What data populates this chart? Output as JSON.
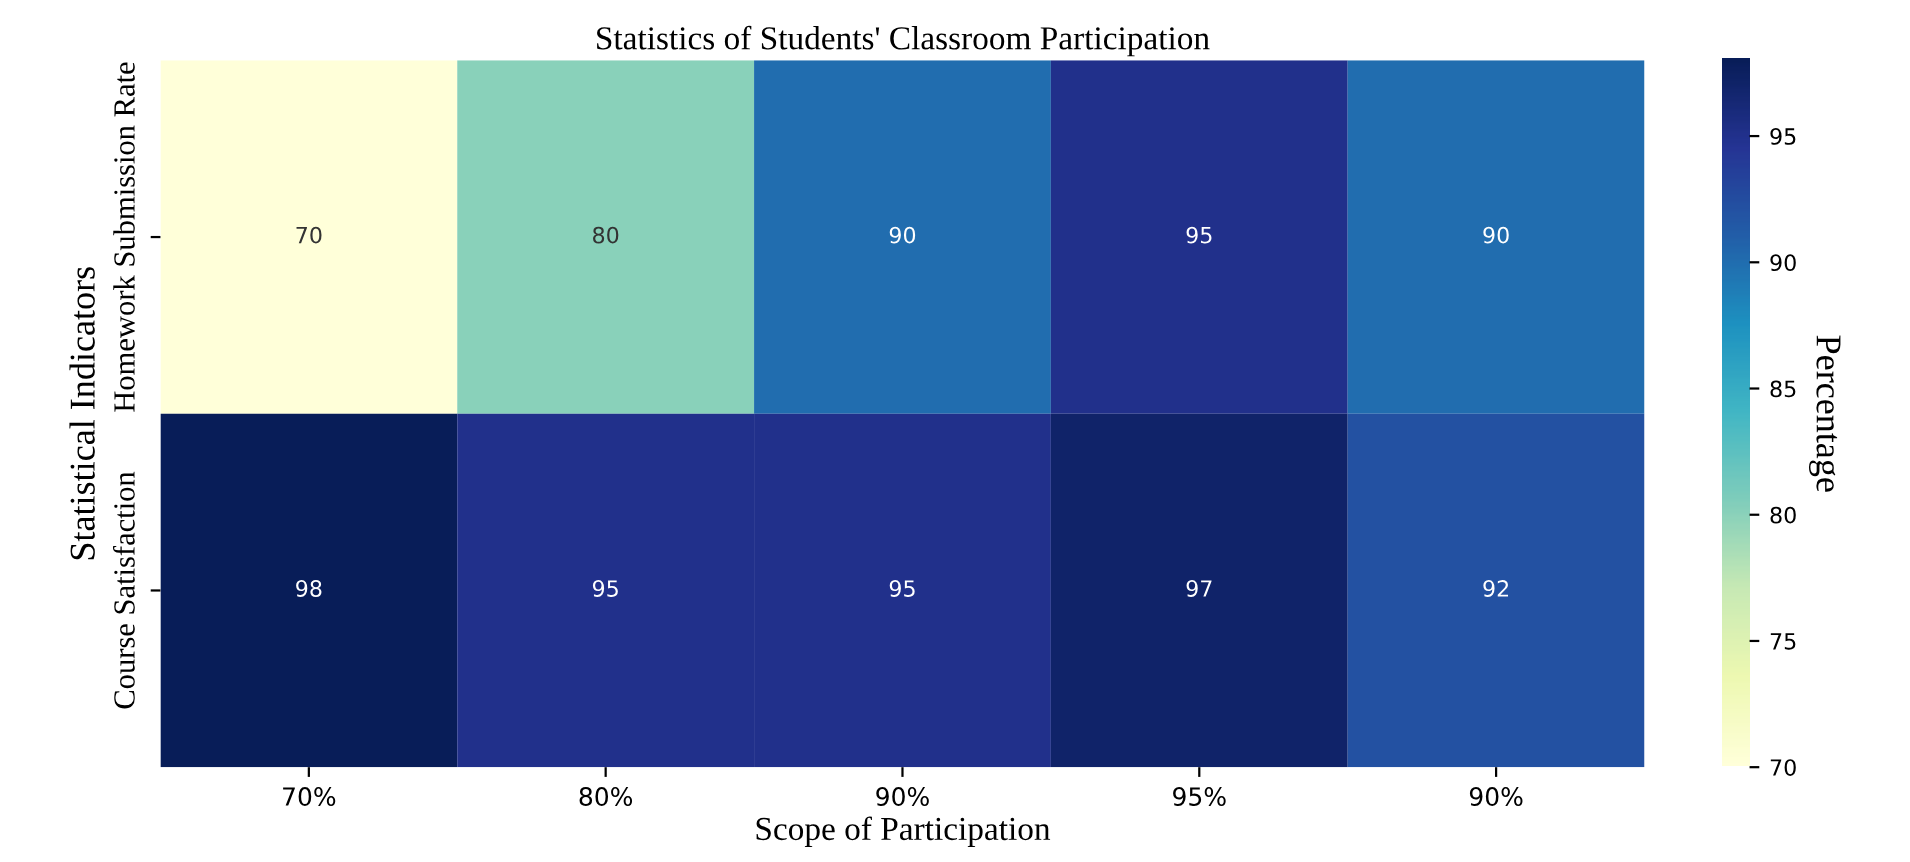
{
  "chart_data": {
    "type": "heatmap",
    "title": "Statistics of Students' Classroom Participation",
    "xlabel": "Scope of Participation",
    "ylabel": "Statistical Indicators",
    "clabel": "Percentage",
    "categories": [
      "70%",
      "80%",
      "90%",
      "95%",
      "90%"
    ],
    "y_categories": [
      "Homework Submission Rate",
      "Course Satisfaction"
    ],
    "cells": [
      [
        70,
        80,
        90,
        95,
        90
      ],
      [
        98,
        95,
        95,
        97,
        92
      ]
    ],
    "data_labels": true,
    "clim": [
      70,
      98
    ],
    "cticks": [
      70,
      75,
      80,
      85,
      90,
      95
    ]
  }
}
